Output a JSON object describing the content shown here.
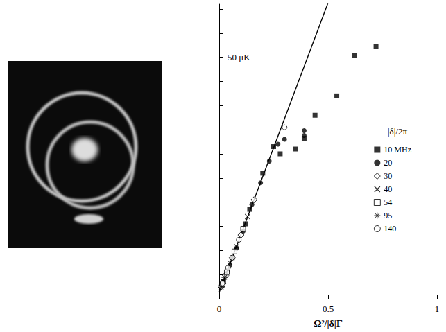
{
  "chart_data": {
    "type": "scatter",
    "x_label": "Ω²/|δ|Γ",
    "legend_title": "|δ|/2π",
    "legend": "right",
    "grid": false,
    "xlim": [
      0,
      1
    ],
    "xticks": [
      0,
      0.5,
      1
    ],
    "ylim": [
      0,
      61
    ],
    "yticks": [
      {
        "value": 50,
        "label": "50 μK"
      }
    ],
    "y_tick_marks": [
      0,
      5,
      10,
      15,
      20,
      25,
      30,
      35,
      40,
      45,
      50,
      55,
      60
    ],
    "series": [
      {
        "name": "10 MHz",
        "color": "#000000",
        "marker": "filled_square",
        "x": [
          0.72,
          0.62,
          0.54,
          0.44,
          0.39,
          0.35,
          0.28,
          0.25,
          0.2,
          0.14,
          0.12,
          0.06,
          0.02
        ],
        "values": [
          52.2,
          50.4,
          42.0,
          38.0,
          33.2,
          31.0,
          30.0,
          31.5,
          26.0,
          18.5,
          15.5,
          8.5,
          3.5
        ]
      },
      {
        "name": "20",
        "color": "#000000",
        "marker": "filled_circle",
        "x": [
          0.39,
          0.39,
          0.3,
          0.27,
          0.23,
          0.19,
          0.15,
          0.11,
          0.08,
          0.05,
          0.03,
          0.01
        ],
        "values": [
          34.8,
          33.8,
          33.0,
          32.0,
          28.5,
          24.0,
          19.5,
          14.0,
          10.5,
          7.0,
          5.0,
          2.8
        ]
      },
      {
        "name": "30",
        "color": "#000000",
        "marker": "open_diamond",
        "x": [
          0.16,
          0.1,
          0.06,
          0.03,
          0.01
        ],
        "values": [
          20.5,
          13.2,
          8.5,
          4.8,
          2.5
        ]
      },
      {
        "name": "40",
        "color": "#000000",
        "marker": "x",
        "x": [
          0.13,
          0.08,
          0.04,
          0.02
        ],
        "values": [
          17.0,
          10.8,
          6.0,
          3.6
        ]
      },
      {
        "name": "54",
        "color": "#000000",
        "marker": "open_square",
        "x": [
          0.11,
          0.07,
          0.035,
          0.015
        ],
        "values": [
          14.5,
          9.8,
          5.5,
          3.0
        ]
      },
      {
        "name": "95",
        "color": "#000000",
        "marker": "asterisk",
        "x": [
          0.05,
          0.025,
          0.01
        ],
        "values": [
          7.4,
          4.4,
          2.4
        ]
      },
      {
        "name": "140",
        "color": "#000000",
        "marker": "open_circle",
        "x": [
          0.3,
          0.09,
          0.04,
          0.015
        ],
        "values": [
          35.5,
          12.2,
          6.4,
          3.2
        ]
      }
    ],
    "fit": {
      "type": "line",
      "color": "#000000",
      "line_style": "solid",
      "x": [
        0,
        0.5
      ],
      "values": [
        1.3,
        61.3
      ]
    }
  }
}
